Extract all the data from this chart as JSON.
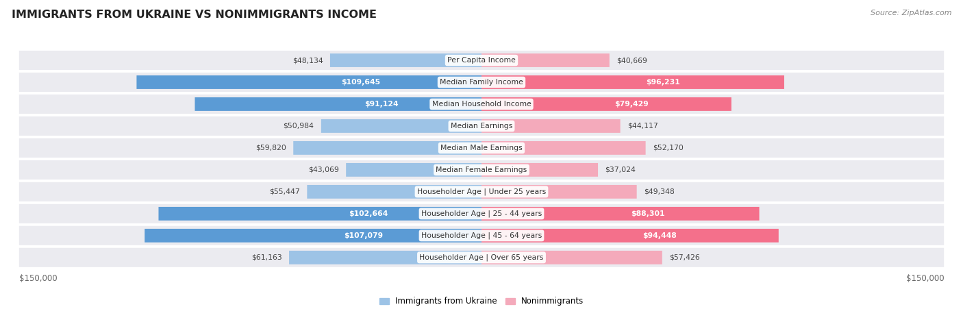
{
  "title": "IMMIGRANTS FROM UKRAINE VS NONIMMIGRANTS INCOME",
  "source": "Source: ZipAtlas.com",
  "categories": [
    "Per Capita Income",
    "Median Family Income",
    "Median Household Income",
    "Median Earnings",
    "Median Male Earnings",
    "Median Female Earnings",
    "Householder Age | Under 25 years",
    "Householder Age | 25 - 44 years",
    "Householder Age | 45 - 64 years",
    "Householder Age | Over 65 years"
  ],
  "ukraine_values": [
    48134,
    109645,
    91124,
    50984,
    59820,
    43069,
    55447,
    102664,
    107079,
    61163
  ],
  "nonimmigrant_values": [
    40669,
    96231,
    79429,
    44117,
    52170,
    37024,
    49348,
    88301,
    94448,
    57426
  ],
  "ukraine_color_strong": "#5B9BD5",
  "ukraine_color_light": "#9DC3E6",
  "nonimmigrant_color_strong": "#F4708B",
  "nonimmigrant_color_light": "#F4AABB",
  "bg_row_color": "#EBEBF0",
  "bg_row_color_alt": "#F5F5FA",
  "max_value": 150000,
  "legend_ukraine": "Immigrants from Ukraine",
  "legend_nonimmigrant": "Nonimmigrants",
  "xlabel_left": "$150,000",
  "xlabel_right": "$150,000",
  "ukraine_strong_thresh": 75000,
  "nonimmig_strong_thresh": 75000
}
